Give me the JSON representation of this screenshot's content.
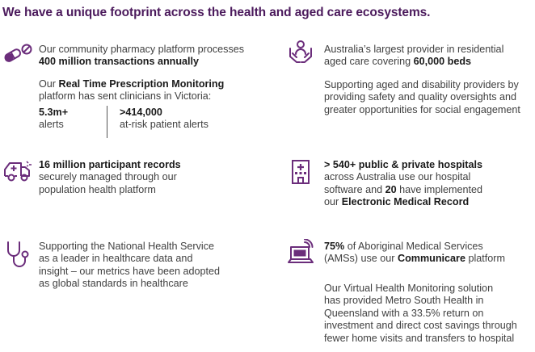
{
  "title": "We have a unique footprint across the health and aged care ecosystems.",
  "accent_color": "#6b2d7b",
  "blocks": {
    "pharmacy": {
      "icon": "pills-icon",
      "line1": "Our community pharmacy platform processes",
      "line2": "400 million transactions annually",
      "rtpm_pre": "Our ",
      "rtpm_bold": "Real Time Prescription Monitoring",
      "rtpm_line2": "platform has sent clinicians in Victoria:",
      "stat1_value": "5.3m+",
      "stat1_label": "alerts",
      "stat2_value": ">414,000",
      "stat2_label": "at-risk patient alerts"
    },
    "aged_care": {
      "icon": "caring-hands-icon",
      "line1": "Australia’s largest provider in residential",
      "line2_pre": "aged care covering ",
      "line2_bold": "60,000 beds",
      "para2_line1": "Supporting aged and disability providers by",
      "para2_line2": "providing safety and quality oversights and",
      "para2_line3": "greater opportunities for social engagement"
    },
    "participants": {
      "icon": "ambulance-icon",
      "line1": "16 million participant records",
      "line2": "securely managed through our",
      "line3": "population health platform"
    },
    "hospitals": {
      "icon": "hospital-building-icon",
      "line1": "> 540+ public & private hospitals",
      "line2": "across Australia use our hospital",
      "line3_pre": "software and ",
      "line3_bold": "20",
      "line3_post": " have implemented",
      "line4_pre": "our ",
      "line4_bold": "Electronic Medical Record"
    },
    "nhs": {
      "icon": "stethoscope-icon",
      "line1": "Supporting the National Health Service",
      "line2": "as a leader in healthcare data and",
      "line3": "insight – our metrics have been adopted",
      "line4": "as global standards in healthcare"
    },
    "aboriginal": {
      "icon": "laptop-signal-icon",
      "line1_bold": "75%",
      "line1_post": " of Aboriginal Medical Services",
      "line2_pre": "(AMSs) use our ",
      "line2_bold": "Communicare",
      "line2_post": " platform",
      "para2_line1": "Our Virtual Health Monitoring solution",
      "para2_line2": "has provided Metro South Health in",
      "para2_line3": "Queensland with a 33.5% return on",
      "para2_line4": "investment and direct cost savings through",
      "para2_line5": "fewer home visits and transfers to hospital"
    }
  }
}
